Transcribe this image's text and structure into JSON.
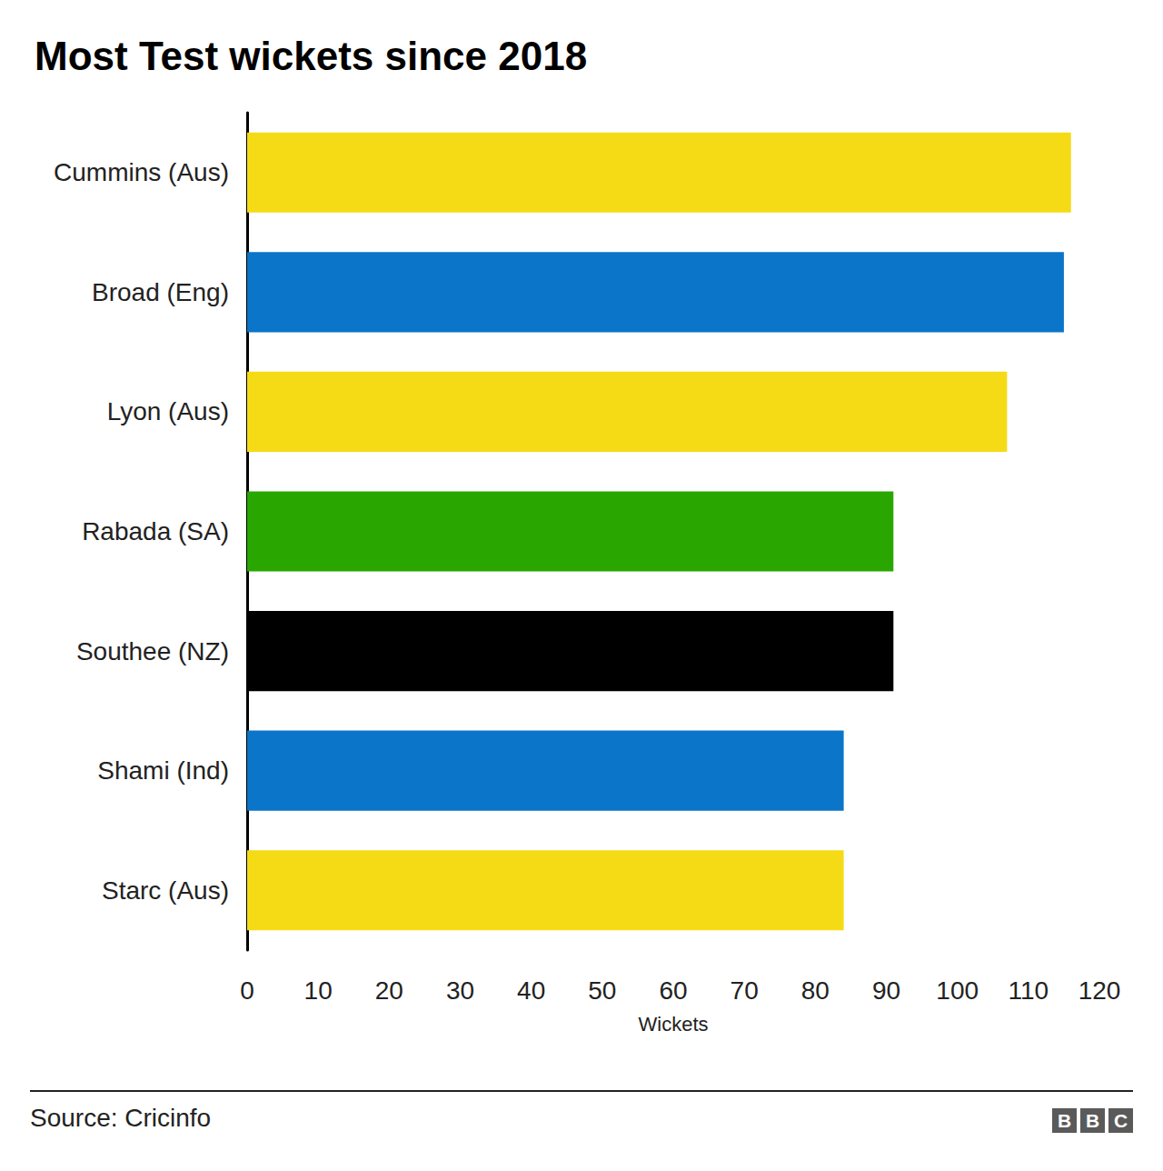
{
  "chart_data": {
    "type": "bar",
    "orientation": "horizontal",
    "title": "Most Test wickets since 2018",
    "categories": [
      "Cummins (Aus)",
      "Broad (Eng)",
      "Lyon (Aus)",
      "Rabada (SA)",
      "Southee (NZ)",
      "Shami (Ind)",
      "Starc (Aus)"
    ],
    "values": [
      116,
      115,
      107,
      91,
      91,
      84,
      84
    ],
    "colors": [
      "#f5db16",
      "#0a75c9",
      "#f5db16",
      "#29a700",
      "#000000",
      "#0a75c9",
      "#f5db16"
    ],
    "x_label": "Wickets",
    "xlim": [
      0,
      120
    ],
    "xticks": [
      0,
      10,
      20,
      30,
      40,
      50,
      60,
      70,
      80,
      90,
      100,
      110,
      120
    ],
    "grid": false,
    "source": "Source: Cricinfo",
    "logo": "BBC"
  }
}
